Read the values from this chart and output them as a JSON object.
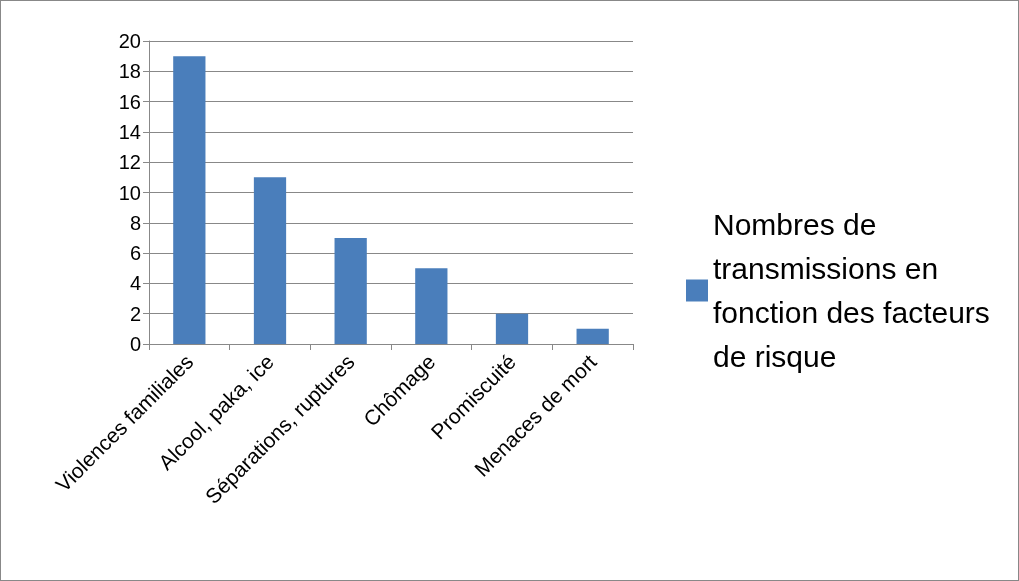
{
  "chart_data": {
    "type": "bar",
    "categories": [
      "Violences familiales",
      "Alcool, paka, ice",
      "Séparations, ruptures",
      "Chômage",
      "Promiscuité",
      "Menaces de mort"
    ],
    "series": [
      {
        "name": "Nombres de transmissions en fonction des facteurs de risque",
        "color": "#4a7ebb",
        "values": [
          19,
          11,
          7,
          5,
          2,
          1
        ]
      }
    ],
    "ylim": [
      0,
      20
    ],
    "yticks": [
      0,
      2,
      4,
      6,
      8,
      10,
      12,
      14,
      16,
      18,
      20
    ],
    "grid": "y",
    "legend": "right"
  }
}
